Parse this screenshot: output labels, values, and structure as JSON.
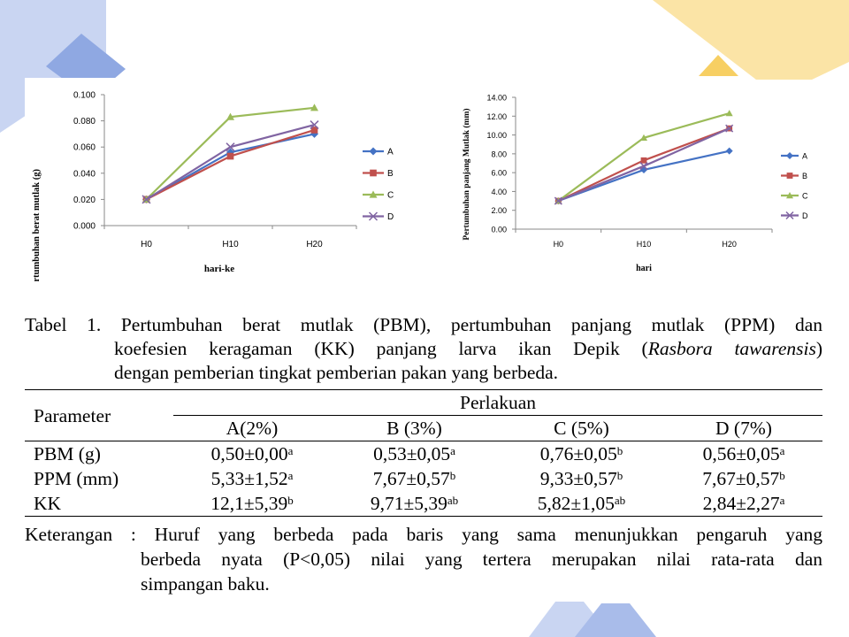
{
  "colors": {
    "A": "#4472C4",
    "B": "#C0504D",
    "C": "#9BBB59",
    "D": "#8064A2",
    "deco_blue": "#5B7FD0",
    "deco_yellow": "#F9D77E"
  },
  "chart_data": [
    {
      "type": "line",
      "title": "",
      "xlabel": "hari-ke",
      "ylabel": "pertumbuhan berat mutlak (g)",
      "categories": [
        "H0",
        "H10",
        "H20"
      ],
      "yticks": [
        "0.000",
        "0.020",
        "0.040",
        "0.060",
        "0.080",
        "0.100"
      ],
      "ylim": [
        0,
        0.1
      ],
      "grid": false,
      "legend": "right",
      "series": [
        {
          "name": "A",
          "marker": "diamond",
          "values": [
            0.02,
            0.056,
            0.07
          ]
        },
        {
          "name": "B",
          "marker": "square",
          "values": [
            0.02,
            0.053,
            0.073
          ]
        },
        {
          "name": "C",
          "marker": "triangle",
          "values": [
            0.02,
            0.083,
            0.09
          ]
        },
        {
          "name": "D",
          "marker": "x",
          "values": [
            0.02,
            0.06,
            0.077
          ]
        }
      ]
    },
    {
      "type": "line",
      "title": "",
      "xlabel": "hari",
      "ylabel": "Pertumbuhan panjang Mutlak (mm)",
      "categories": [
        "H0",
        "H10",
        "H20"
      ],
      "yticks": [
        "0.00",
        "2.00",
        "4.00",
        "6.00",
        "8.00",
        "10.00",
        "12.00",
        "14.00"
      ],
      "ylim": [
        0,
        14
      ],
      "grid": false,
      "legend": "right",
      "series": [
        {
          "name": "A",
          "marker": "diamond",
          "values": [
            3.0,
            6.3,
            8.3
          ]
        },
        {
          "name": "B",
          "marker": "square",
          "values": [
            3.0,
            7.3,
            10.7
          ]
        },
        {
          "name": "C",
          "marker": "triangle",
          "values": [
            3.0,
            9.7,
            12.3
          ]
        },
        {
          "name": "D",
          "marker": "x",
          "values": [
            3.0,
            6.7,
            10.7
          ]
        }
      ]
    }
  ],
  "caption": {
    "line1": "Tabel 1. Pertumbuhan berat mutlak (PBM), pertumbuhan panjang mutlak (PPM) dan",
    "line2_pre": "koefesien keragaman (KK) panjang larva ikan Depik (",
    "line2_italic": "Rasbora tawarensis",
    "line2_post": ")",
    "line3": "dengan pemberian tingkat pemberian pakan yang berbeda."
  },
  "table": {
    "param_header": "Parameter",
    "group_header": "Perlakuan",
    "columns": [
      "A(2%)",
      "B (3%)",
      "C (5%)",
      "D (7%)"
    ],
    "rows": [
      {
        "param": "PBM (g)",
        "cells": [
          {
            "v": "0,50±0,00",
            "s": "a"
          },
          {
            "v": "0,53±0,05",
            "s": "a"
          },
          {
            "v": "0,76±0,05",
            "s": "b"
          },
          {
            "v": "0,56±0,05",
            "s": "a"
          }
        ]
      },
      {
        "param": "PPM (mm)",
        "cells": [
          {
            "v": "5,33±1,52",
            "s": "a"
          },
          {
            "v": "7,67±0,57",
            "s": "b"
          },
          {
            "v": "9,33±0,57",
            "s": "b"
          },
          {
            "v": "7,67±0,57",
            "s": "b"
          }
        ]
      },
      {
        "param": "KK",
        "cells": [
          {
            "v": "12,1±5,39",
            "s": "b"
          },
          {
            "v": "9,71±5,39",
            "s": "ab"
          },
          {
            "v": "5,82±1,05",
            "s": "ab"
          },
          {
            "v": "2,84±2,27",
            "s": "a"
          }
        ]
      }
    ]
  },
  "note": {
    "line1": "Keterangan : Huruf yang berbeda pada baris yang sama menunjukkan pengaruh yang",
    "line2": "berbeda nyata (P<0,05) nilai yang tertera merupakan nilai rata-rata dan",
    "line3": "simpangan baku."
  }
}
